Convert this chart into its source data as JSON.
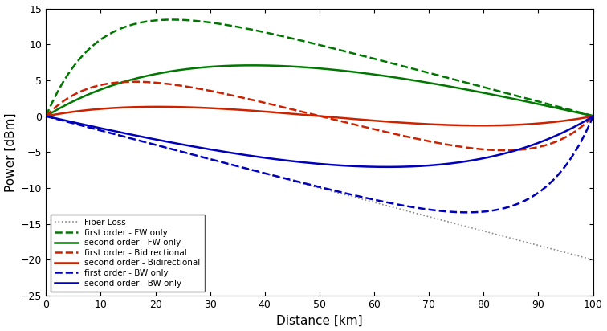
{
  "xlim": [
    0,
    100
  ],
  "ylim": [
    -25,
    15
  ],
  "xlabel": "Distance [km]",
  "ylabel": "Power [dBm]",
  "xticks": [
    0,
    10,
    20,
    30,
    40,
    50,
    60,
    70,
    80,
    90,
    100
  ],
  "yticks": [
    -25,
    -20,
    -15,
    -10,
    -5,
    0,
    5,
    10,
    15
  ],
  "alpha_dB_km": 0.2,
  "colors": {
    "green": "#007700",
    "red": "#CC2200",
    "blue": "#0000BB",
    "gray": "#888888"
  },
  "legend_entries": [
    {
      "label": "first order - FW only",
      "color": "#007700",
      "linestyle": "dashed"
    },
    {
      "label": "second order - FW only",
      "color": "#007700",
      "linestyle": "solid"
    },
    {
      "label": "first order - Bidirectional",
      "color": "#CC2200",
      "linestyle": "dashed"
    },
    {
      "label": "second order - Bidirectional",
      "color": "#CC2200",
      "linestyle": "solid"
    },
    {
      "label": "first order - BW only",
      "color": "#0000BB",
      "linestyle": "dashed"
    },
    {
      "label": "second order - BW only",
      "color": "#0000BB",
      "linestyle": "solid"
    },
    {
      "label": "Fiber Loss",
      "color": "#888888",
      "linestyle": "dotted"
    }
  ],
  "figsize": [
    7.56,
    4.12
  ],
  "dpi": 100
}
